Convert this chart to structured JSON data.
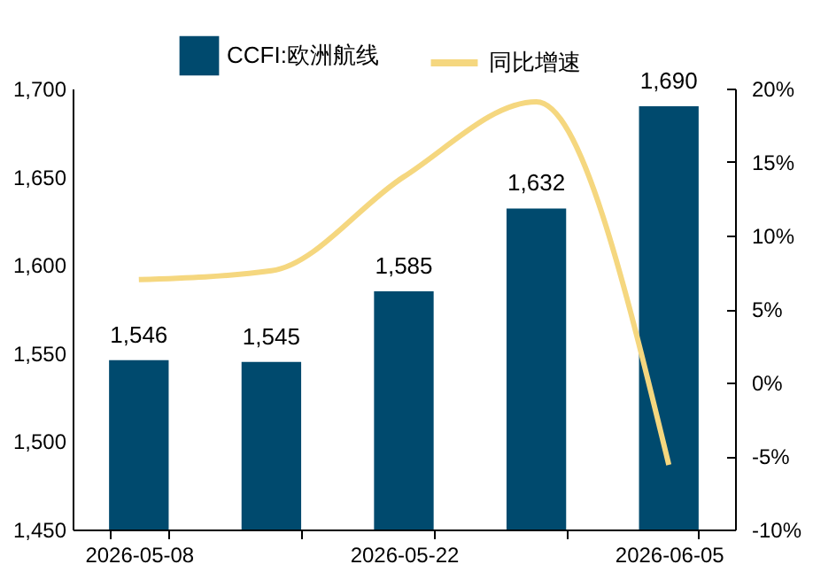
{
  "chart_data": {
    "type": "bar",
    "categories": [
      "2026-05-08",
      null,
      "2026-05-22",
      null,
      "2026-06-05"
    ],
    "series": [
      {
        "name": "CCFI:欧洲航线",
        "color": "#004a6e",
        "values": [
          1546,
          1545,
          1585,
          1632,
          1690
        ],
        "value_labels": [
          "1,546",
          "1,545",
          "1,585",
          "1,632",
          "1,690"
        ]
      },
      {
        "name": "同比增速",
        "type": "line",
        "axis": "y2",
        "color": "#f5d77f",
        "values": [
          7,
          7.6,
          14,
          19.1,
          -5.6
        ]
      }
    ],
    "ylim": [
      1450,
      1700
    ],
    "yticks": [
      {
        "value": 1450,
        "label": "1,450"
      },
      {
        "value": 1500,
        "label": "1,500"
      },
      {
        "value": 1550,
        "label": "1,550"
      },
      {
        "value": 1600,
        "label": "1,600"
      },
      {
        "value": 1650,
        "label": "1,650"
      },
      {
        "value": 1700,
        "label": "1,700"
      }
    ],
    "y2lim": [
      -10,
      20
    ],
    "y2ticks": [
      {
        "value": -10,
        "label": "-10%"
      },
      {
        "value": -5,
        "label": "-5%"
      },
      {
        "value": 0,
        "label": "0%"
      },
      {
        "value": 5,
        "label": "5%"
      },
      {
        "value": 10,
        "label": "10%"
      },
      {
        "value": 15,
        "label": "15%"
      },
      {
        "value": 20,
        "label": "20%"
      }
    ],
    "grid": false,
    "legend": "top",
    "marker": "none",
    "line_style": "solid"
  }
}
